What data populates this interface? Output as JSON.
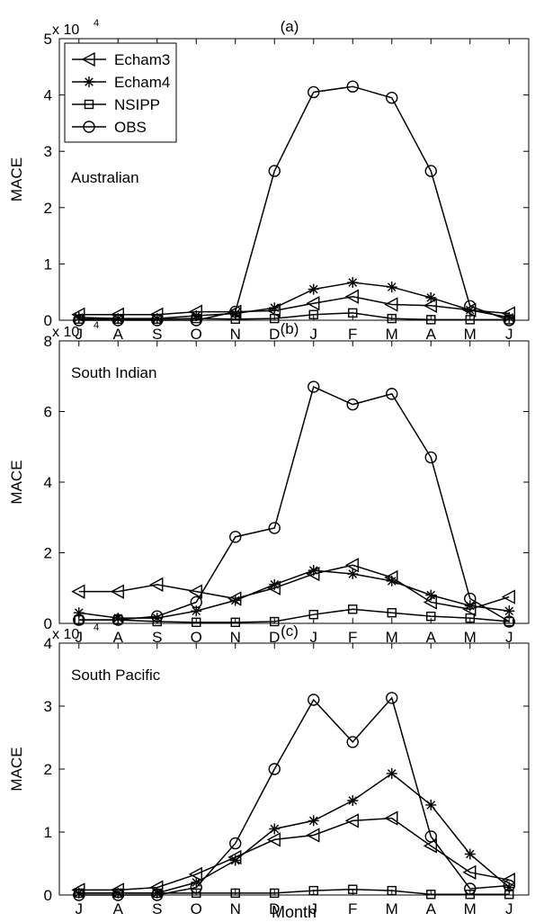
{
  "figure": {
    "xlabel": "Month"
  },
  "chart_data": [
    {
      "type": "line",
      "panel_label": "(a)",
      "region_label": "Australian",
      "ylabel": "MACE",
      "multiplier_base": "x 10",
      "multiplier_exp": "4",
      "categories": [
        "J",
        "A",
        "S",
        "O",
        "N",
        "D",
        "J",
        "F",
        "M",
        "A",
        "M",
        "J"
      ],
      "ylim": [
        0,
        50000
      ],
      "yticks": [
        0,
        10000,
        20000,
        30000,
        40000,
        50000
      ],
      "ytick_labels": [
        "0",
        "1",
        "2",
        "3",
        "4",
        "5"
      ],
      "show_legend": true,
      "legend_position": "top-left",
      "series": [
        {
          "name": "Echam3",
          "marker": "triangle-left",
          "values": [
            1000,
            1000,
            1000,
            1500,
            1500,
            1700,
            3000,
            4200,
            2800,
            2600,
            1800,
            1200
          ]
        },
        {
          "name": "Echam4",
          "marker": "star",
          "values": [
            500,
            300,
            300,
            800,
            1200,
            2200,
            5500,
            6700,
            5900,
            4000,
            1800,
            500
          ]
        },
        {
          "name": "NSIPP",
          "marker": "square",
          "values": [
            200,
            200,
            200,
            300,
            200,
            300,
            1000,
            1300,
            300,
            100,
            100,
            100
          ]
        },
        {
          "name": "OBS",
          "marker": "circle",
          "values": [
            0,
            0,
            0,
            0,
            1500,
            26500,
            40500,
            41500,
            39500,
            26500,
            2500,
            0
          ]
        }
      ]
    },
    {
      "type": "line",
      "panel_label": "(b)",
      "region_label": "South Indian",
      "ylabel": "MACE",
      "multiplier_base": "x 10",
      "multiplier_exp": "4",
      "categories": [
        "J",
        "A",
        "S",
        "O",
        "N",
        "D",
        "J",
        "F",
        "M",
        "A",
        "M",
        "J"
      ],
      "ylim": [
        0,
        80000
      ],
      "yticks": [
        0,
        20000,
        40000,
        60000,
        80000
      ],
      "ytick_labels": [
        "0",
        "2",
        "4",
        "6",
        "8"
      ],
      "show_legend": false,
      "series": [
        {
          "name": "Echam3",
          "marker": "triangle-left",
          "values": [
            9000,
            9000,
            11000,
            9000,
            7000,
            10000,
            14000,
            16500,
            13000,
            6000,
            4000,
            7500
          ]
        },
        {
          "name": "Echam4",
          "marker": "star",
          "values": [
            3000,
            1500,
            1500,
            3500,
            6500,
            11000,
            15000,
            14000,
            12000,
            8000,
            5000,
            3500
          ]
        },
        {
          "name": "NSIPP",
          "marker": "square",
          "values": [
            1000,
            1000,
            500,
            300,
            300,
            500,
            2500,
            4000,
            3000,
            2000,
            1500,
            500
          ]
        },
        {
          "name": "OBS",
          "marker": "circle",
          "values": [
            1000,
            1000,
            2000,
            6000,
            24500,
            27000,
            67000,
            62000,
            65000,
            47000,
            7000,
            500
          ]
        }
      ]
    },
    {
      "type": "line",
      "panel_label": "(c)",
      "region_label": "South Pacific",
      "ylabel": "MACE",
      "multiplier_base": "x 10",
      "multiplier_exp": "4",
      "categories": [
        "J",
        "A",
        "S",
        "O",
        "N",
        "D",
        "J",
        "F",
        "M",
        "A",
        "M",
        "J"
      ],
      "ylim": [
        0,
        40000
      ],
      "yticks": [
        0,
        10000,
        20000,
        30000,
        40000
      ],
      "ytick_labels": [
        "0",
        "1",
        "2",
        "3",
        "4"
      ],
      "show_legend": false,
      "series": [
        {
          "name": "Echam3",
          "marker": "triangle-left",
          "values": [
            800,
            800,
            1200,
            3300,
            6000,
            8800,
            9500,
            11800,
            12200,
            7800,
            3600,
            2400
          ]
        },
        {
          "name": "Echam4",
          "marker": "star",
          "values": [
            300,
            300,
            300,
            2000,
            5500,
            10500,
            11800,
            15000,
            19300,
            14300,
            6500,
            1200
          ]
        },
        {
          "name": "NSIPP",
          "marker": "square",
          "values": [
            300,
            300,
            300,
            300,
            300,
            300,
            700,
            900,
            700,
            100,
            100,
            100
          ]
        },
        {
          "name": "OBS",
          "marker": "circle",
          "values": [
            0,
            0,
            0,
            1200,
            8200,
            20000,
            31000,
            24300,
            31300,
            9300,
            1000,
            1500
          ]
        }
      ]
    }
  ]
}
